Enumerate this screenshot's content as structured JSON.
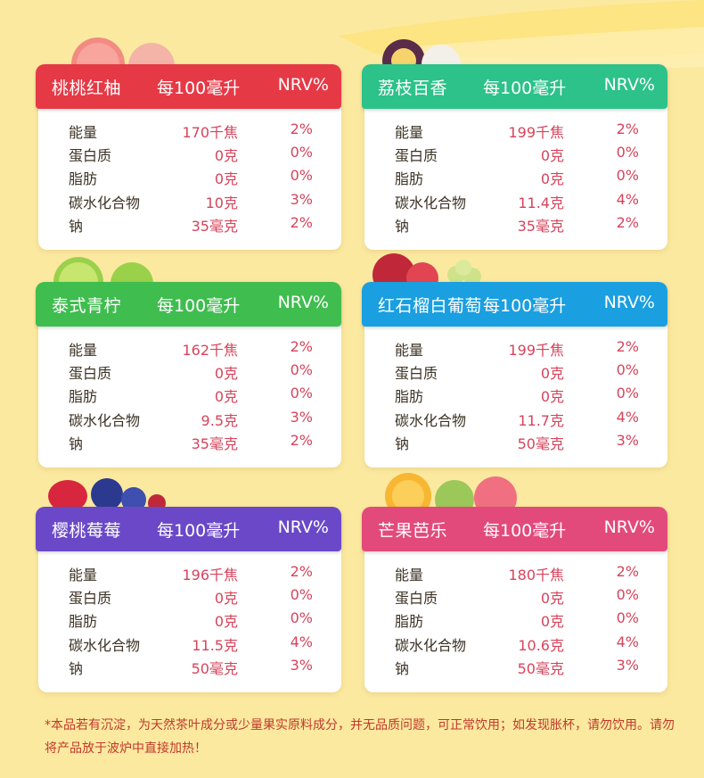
{
  "header_per": "每100毫升",
  "header_nrv": "NRV%",
  "cards": [
    {
      "name": "桃桃红柚",
      "color": "#e63946",
      "rows": [
        {
          "label": "能量",
          "amount": "170千焦",
          "nrv": "2%"
        },
        {
          "label": "蛋白质",
          "amount": "0克",
          "nrv": "0%"
        },
        {
          "label": "脂肪",
          "amount": "0克",
          "nrv": "0%"
        },
        {
          "label": "碳水化合物",
          "amount": "10克",
          "nrv": "3%"
        },
        {
          "label": "钠",
          "amount": "35毫克",
          "nrv": "2%"
        }
      ]
    },
    {
      "name": "荔枝百香",
      "color": "#2cc28a",
      "rows": [
        {
          "label": "能量",
          "amount": "199千焦",
          "nrv": "2%"
        },
        {
          "label": "蛋白质",
          "amount": "0克",
          "nrv": "0%"
        },
        {
          "label": "脂肪",
          "amount": "0克",
          "nrv": "0%"
        },
        {
          "label": "碳水化合物",
          "amount": "11.4克",
          "nrv": "4%"
        },
        {
          "label": "钠",
          "amount": "35毫克",
          "nrv": "2%"
        }
      ]
    },
    {
      "name": "泰式青柠",
      "color": "#3fbd4f",
      "rows": [
        {
          "label": "能量",
          "amount": "162千焦",
          "nrv": "2%"
        },
        {
          "label": "蛋白质",
          "amount": "0克",
          "nrv": "0%"
        },
        {
          "label": "脂肪",
          "amount": "0克",
          "nrv": "0%"
        },
        {
          "label": "碳水化合物",
          "amount": "9.5克",
          "nrv": "3%"
        },
        {
          "label": "钠",
          "amount": "35毫克",
          "nrv": "2%"
        }
      ]
    },
    {
      "name": "红石榴白葡萄",
      "color": "#1a9fe0",
      "rows": [
        {
          "label": "能量",
          "amount": "199千焦",
          "nrv": "2%"
        },
        {
          "label": "蛋白质",
          "amount": "0克",
          "nrv": "0%"
        },
        {
          "label": "脂肪",
          "amount": "0克",
          "nrv": "0%"
        },
        {
          "label": "碳水化合物",
          "amount": "11.7克",
          "nrv": "4%"
        },
        {
          "label": "钠",
          "amount": "50毫克",
          "nrv": "3%"
        }
      ]
    },
    {
      "name": "樱桃莓莓",
      "color": "#6a48c8",
      "rows": [
        {
          "label": "能量",
          "amount": "196千焦",
          "nrv": "2%"
        },
        {
          "label": "蛋白质",
          "amount": "0克",
          "nrv": "0%"
        },
        {
          "label": "脂肪",
          "amount": "0克",
          "nrv": "0%"
        },
        {
          "label": "碳水化合物",
          "amount": "11.5克",
          "nrv": "4%"
        },
        {
          "label": "钠",
          "amount": "50毫克",
          "nrv": "3%"
        }
      ]
    },
    {
      "name": "芒果芭乐",
      "color": "#e24a7c",
      "rows": [
        {
          "label": "能量",
          "amount": "180千焦",
          "nrv": "2%"
        },
        {
          "label": "蛋白质",
          "amount": "0克",
          "nrv": "0%"
        },
        {
          "label": "脂肪",
          "amount": "0克",
          "nrv": "0%"
        },
        {
          "label": "碳水化合物",
          "amount": "10.6克",
          "nrv": "4%"
        },
        {
          "label": "钠",
          "amount": "50毫克",
          "nrv": "3%"
        }
      ]
    }
  ],
  "footnote": "*本品若有沉淀，为天然茶叶成分或少量果实原料成分，并无品质问题，可正常饮用；如发现胀杯，请勿饮用。请勿将产品放于波炉中直接加热！"
}
